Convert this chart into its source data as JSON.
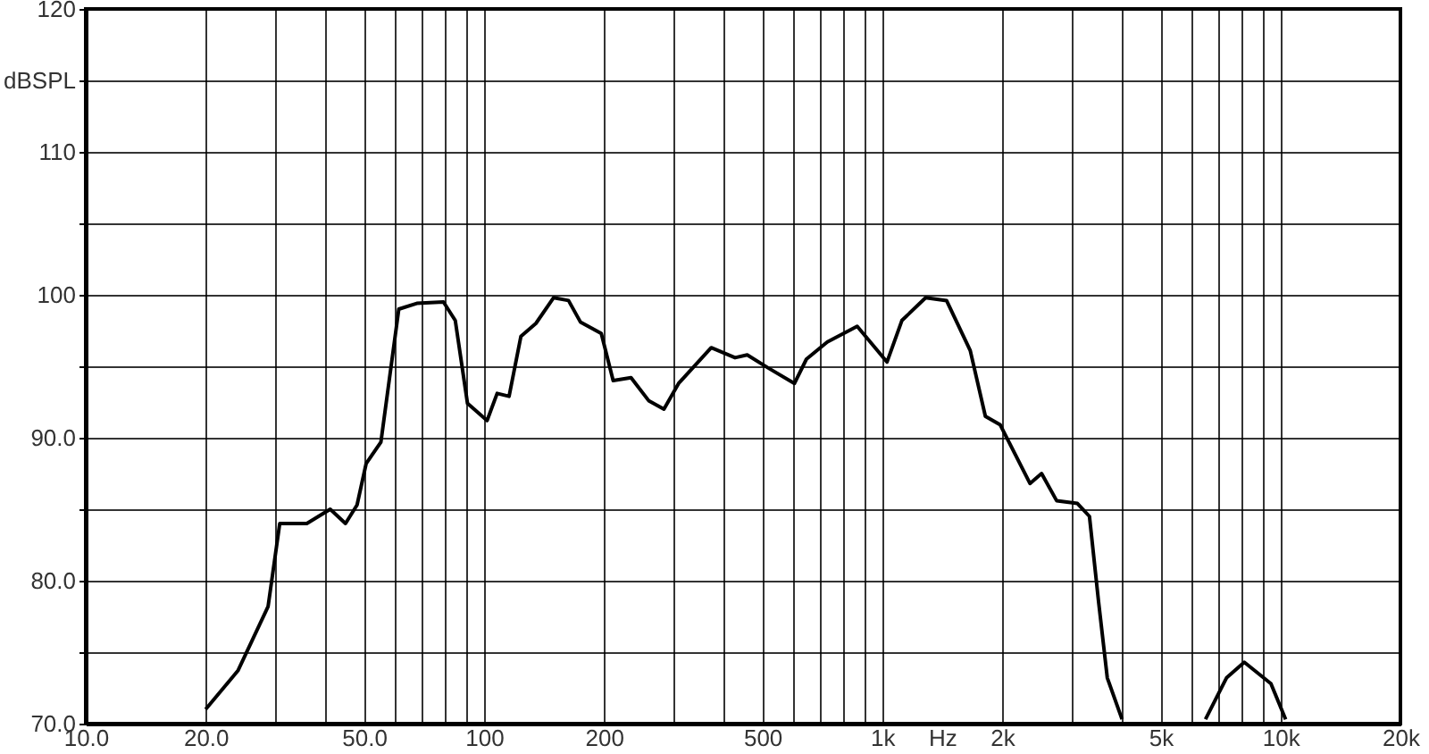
{
  "chart_data": {
    "type": "line",
    "xlabel": "Hz",
    "ylabel": "dBSPL",
    "log": "x",
    "grid": true,
    "xlim": [
      10,
      20000
    ],
    "ylim": [
      70,
      120
    ],
    "xticks": [
      {
        "value": 10,
        "label": "10.0"
      },
      {
        "value": 20,
        "label": "20.0"
      },
      {
        "value": 30,
        "label": null
      },
      {
        "value": 40,
        "label": null
      },
      {
        "value": 50,
        "label": "50.0"
      },
      {
        "value": 60,
        "label": null
      },
      {
        "value": 70,
        "label": null
      },
      {
        "value": 80,
        "label": null
      },
      {
        "value": 90,
        "label": null
      },
      100,
      200,
      {
        "value": 300,
        "label": null
      },
      {
        "value": 400,
        "label": null
      },
      500,
      {
        "value": 600,
        "label": null
      },
      {
        "value": 700,
        "label": null
      },
      {
        "value": 800,
        "label": null
      },
      {
        "value": 900,
        "label": null
      },
      {
        "value": 1000,
        "label": "1k"
      },
      {
        "value": 2000,
        "label": "2k"
      },
      {
        "value": 3000,
        "label": null
      },
      {
        "value": 4000,
        "label": null
      },
      {
        "value": 5000,
        "label": "5k"
      },
      {
        "value": 6000,
        "label": null
      },
      {
        "value": 7000,
        "label": null
      },
      {
        "value": 8000,
        "label": null
      },
      {
        "value": 9000,
        "label": null
      },
      {
        "value": 10000,
        "label": "10k"
      },
      {
        "value": 20000,
        "label": "20k"
      }
    ],
    "yticks": [
      {
        "value": 70,
        "label": "70.0"
      },
      {
        "value": 75,
        "label": null
      },
      {
        "value": 80,
        "label": "80.0"
      },
      {
        "value": 85,
        "label": null
      },
      {
        "value": 90,
        "label": "90.0"
      },
      {
        "value": 95,
        "label": null
      },
      100,
      {
        "value": 105,
        "label": null
      },
      110,
      {
        "value": 115,
        "label": null
      },
      120
    ],
    "series": [
      {
        "color": "#000000",
        "x": [
          20.0,
          24.1,
          28.7,
          30.7,
          35.9,
          41.1,
          44.9,
          48.0,
          50.6,
          55.1,
          61.1,
          67.8,
          79.1,
          84.7,
          90.9,
          101.8,
          107.9,
          115.6,
          123.8,
          135,
          149.6,
          163,
          174.6,
          197,
          211,
          234,
          259,
          283,
          308,
          372,
          427,
          458,
          516,
          602,
          645,
          728,
          865,
          1028,
          1120,
          1285,
          1450,
          1663,
          1815,
          1978,
          2349,
          2512,
          2740,
          3091,
          3313,
          3490,
          3673,
          4000,
          5000,
          6480,
          7317,
          8110,
          9460,
          10300
        ],
        "values": [
          71.0,
          73.7,
          78.2,
          84.0,
          84.0,
          85.0,
          84.0,
          85.3,
          88.2,
          89.7,
          99.0,
          99.4,
          99.5,
          98.2,
          92.4,
          91.2,
          93.1,
          92.9,
          97.1,
          98.0,
          99.8,
          99.6,
          98.1,
          97.3,
          94.0,
          94.2,
          92.6,
          92.0,
          93.8,
          96.3,
          95.6,
          95.8,
          94.9,
          93.8,
          95.5,
          96.7,
          97.8,
          95.3,
          98.2,
          99.8,
          99.6,
          96.1,
          91.5,
          90.9,
          86.8,
          87.5,
          85.6,
          85.4,
          84.5,
          78.6,
          73.2,
          70.3,
          null,
          70.3,
          73.2,
          74.3,
          72.8,
          70.3
        ]
      }
    ]
  }
}
